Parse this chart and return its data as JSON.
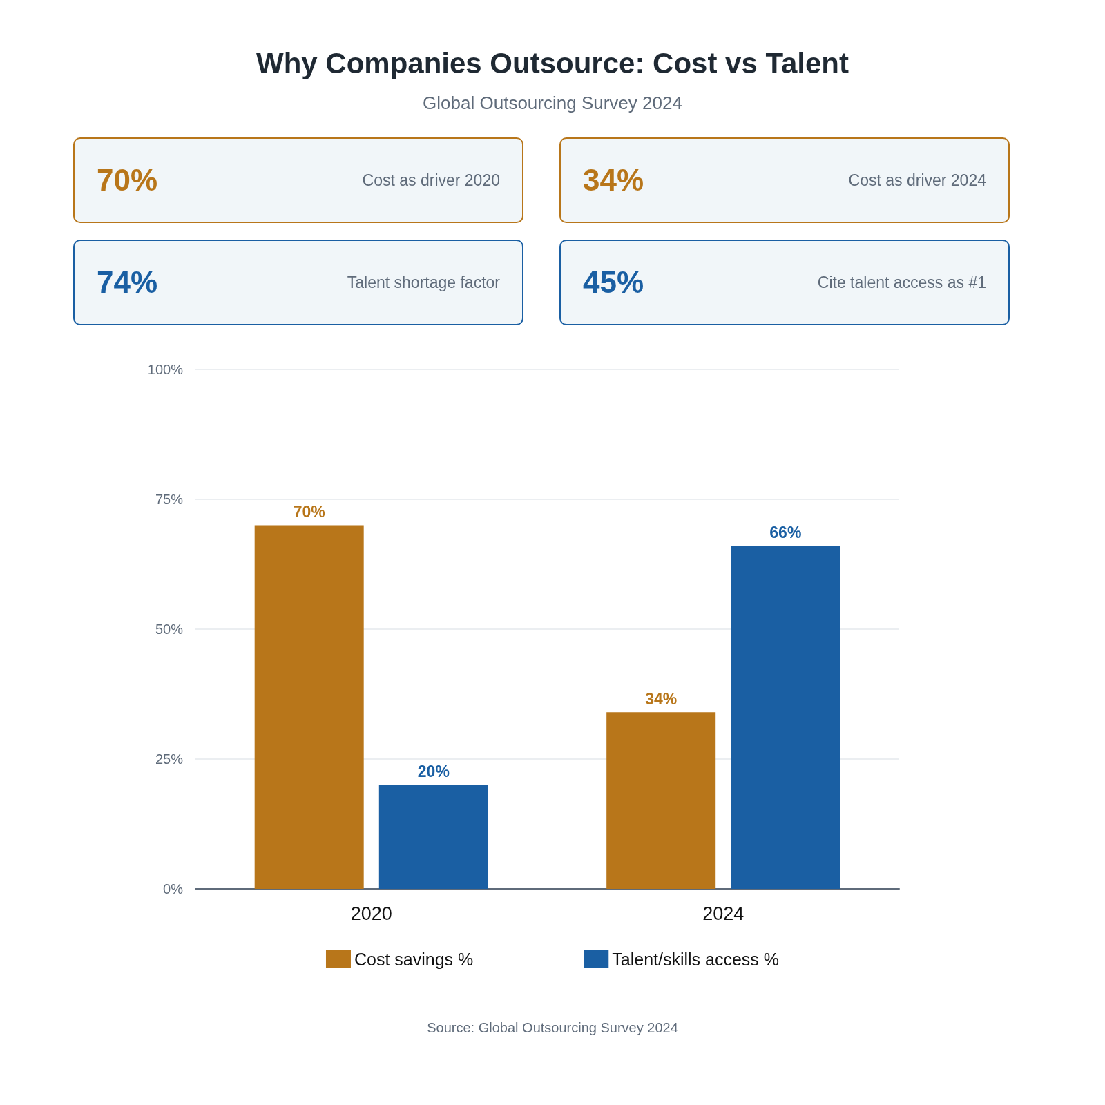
{
  "chart_data": [
    {
      "type": "other",
      "title": "Why Companies Outsource: Cost vs Talent",
      "subtitle": "Global Outsourcing Survey 2024",
      "annotations": [
        "70%",
        "Cost as driver 2020",
        "34%",
        "Cost as driver 2024",
        "74%",
        "Talent shortage factor",
        "45%",
        "Cite talent access as #1"
      ]
    },
    {
      "type": "bar",
      "categories": [
        "2020",
        "2024"
      ],
      "series": [
        {
          "name": "Cost savings %",
          "color": "#b8761a",
          "values": [
            70,
            34
          ],
          "value_labels": [
            "70%",
            "34%"
          ]
        },
        {
          "name": "Talent/skills access %",
          "color": "#1a5fa3",
          "values": [
            20,
            66
          ],
          "value_labels": [
            "20%",
            "66%"
          ]
        }
      ],
      "ylim": [
        0,
        100
      ],
      "yticks": [
        {
          "value": 0,
          "label": "0%"
        },
        {
          "value": 25,
          "label": "25%"
        },
        {
          "value": 50,
          "label": "50%"
        },
        {
          "value": 75,
          "label": "75%"
        },
        {
          "value": 100,
          "label": "100%"
        }
      ],
      "grid": "y",
      "legend": "bottom",
      "annotations": [
        "Source: Global Outsourcing Survey 2024"
      ]
    }
  ]
}
